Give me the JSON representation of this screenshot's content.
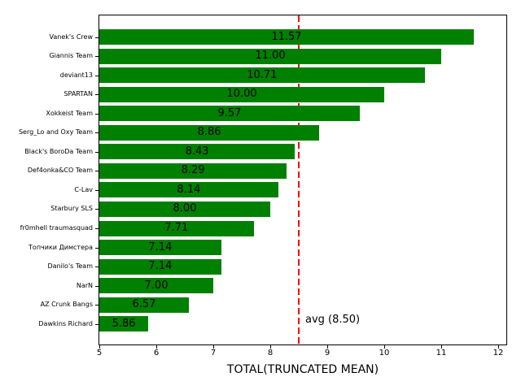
{
  "chart_data": {
    "type": "bar",
    "orientation": "horizontal",
    "xlabel": "TOTAL(TRUNCATED MEAN)",
    "categories": [
      "Vanek's Crew",
      "Giannis Team",
      "deviant13",
      "SPARTAN",
      "Xokkeist Team",
      "Serg_Lo and Oxy Team",
      "Black's BoroDa Team",
      "Def4onka&CO Team",
      "C-Lav",
      "Starbury SLS",
      "fr0mhell traumasquad",
      "Топчики Димстера",
      "Danilo's Team",
      "NarN",
      "AZ Crunk Bangs",
      "Dawkins Richard"
    ],
    "values": [
      11.57,
      11.0,
      10.71,
      10.0,
      9.57,
      8.86,
      8.43,
      8.29,
      8.14,
      8.0,
      7.71,
      7.14,
      7.14,
      7.0,
      6.57,
      5.86
    ],
    "value_labels": [
      "11.57",
      "11.00",
      "10.71",
      "10.00",
      "9.57",
      "8.86",
      "8.43",
      "8.29",
      "8.14",
      "8.00",
      "7.71",
      "7.14",
      "7.14",
      "7.00",
      "6.57",
      "5.86"
    ],
    "xticks": [
      5,
      6,
      7,
      8,
      9,
      10,
      11,
      12
    ],
    "xlim": [
      5,
      12.14
    ],
    "bar_color": "#008000",
    "grid": false,
    "legend": null,
    "avg_line": {
      "value": 8.5,
      "label": "avg (8.50)",
      "color": "#ff0000",
      "linestyle": "dashed"
    }
  }
}
